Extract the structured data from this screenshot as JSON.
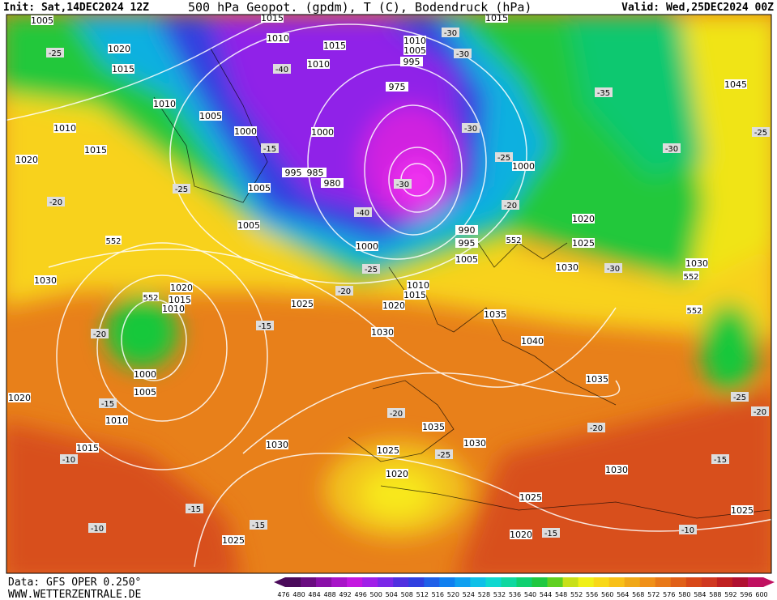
{
  "header": {
    "init": "Init: Sat,14DEC2024 12Z",
    "title": "500 hPa Geopot. (gpdm), T (C), Bodendruck (hPa)",
    "valid": "Valid: Wed,25DEC2024 00Z"
  },
  "footer": {
    "data": "Data: GFS OPER 0.250°",
    "site": "WWW.WETTERZENTRALE.DE"
  },
  "colorbar": {
    "labels": [
      "476",
      "480",
      "484",
      "488",
      "492",
      "496",
      "500",
      "504",
      "508",
      "512",
      "516",
      "520",
      "524",
      "528",
      "532",
      "536",
      "540",
      "544",
      "548",
      "552",
      "556",
      "560",
      "564",
      "568",
      "572",
      "576",
      "580",
      "584",
      "588",
      "592",
      "596",
      "600"
    ],
    "colors": [
      "#4a0a5a",
      "#6a0c80",
      "#8a10a8",
      "#a814c8",
      "#c418e0",
      "#a020e8",
      "#7a28e8",
      "#5030e0",
      "#3040e0",
      "#2060e8",
      "#1080f0",
      "#10a0f0",
      "#10c0e8",
      "#10d8d0",
      "#10d8a0",
      "#10d070",
      "#20c840",
      "#60d020",
      "#c8e018",
      "#f0f018",
      "#f8d818",
      "#f8c018",
      "#f0a818",
      "#f09018",
      "#e87818",
      "#e06018",
      "#d84818",
      "#d03820",
      "#c02020",
      "#b01030",
      "#c01060"
    ]
  },
  "pressure_labels": [
    "1005",
    "1020",
    "1015",
    "1010",
    "1010",
    "1015",
    "1020",
    "1005",
    "1000",
    "1000",
    "1010",
    "1015",
    "1010",
    "1010",
    "1005",
    "995",
    "975",
    "995",
    "985",
    "980",
    "1005",
    "1005",
    "1000",
    "990",
    "995",
    "1005",
    "1010",
    "1015",
    "1020",
    "1025",
    "1030",
    "1035",
    "1040",
    "1035",
    "1030",
    "1020",
    "1015",
    "1010",
    "1000",
    "1005",
    "1010",
    "1015",
    "1020",
    "1030",
    "1035",
    "1025",
    "1030",
    "1020",
    "1025",
    "1030",
    "1020",
    "1025",
    "1025",
    "1000",
    "1020",
    "1025",
    "1030",
    "1045",
    "1030",
    "1015",
    "1015"
  ],
  "temperature_labels": [
    "-25",
    "-20",
    "-25",
    "-15",
    "-40",
    "-35",
    "-30",
    "-30",
    "-25",
    "-20",
    "-25",
    "-20",
    "-30",
    "-25",
    "-20",
    "-15",
    "-15",
    "-10",
    "-15",
    "-10",
    "-15",
    "-20",
    "-25",
    "-20",
    "-15",
    "-10",
    "-15",
    "-25",
    "-20",
    "-30",
    "-30",
    "-40",
    "-30"
  ],
  "height_labels": [
    "552",
    "552",
    "552",
    "552",
    "552"
  ]
}
